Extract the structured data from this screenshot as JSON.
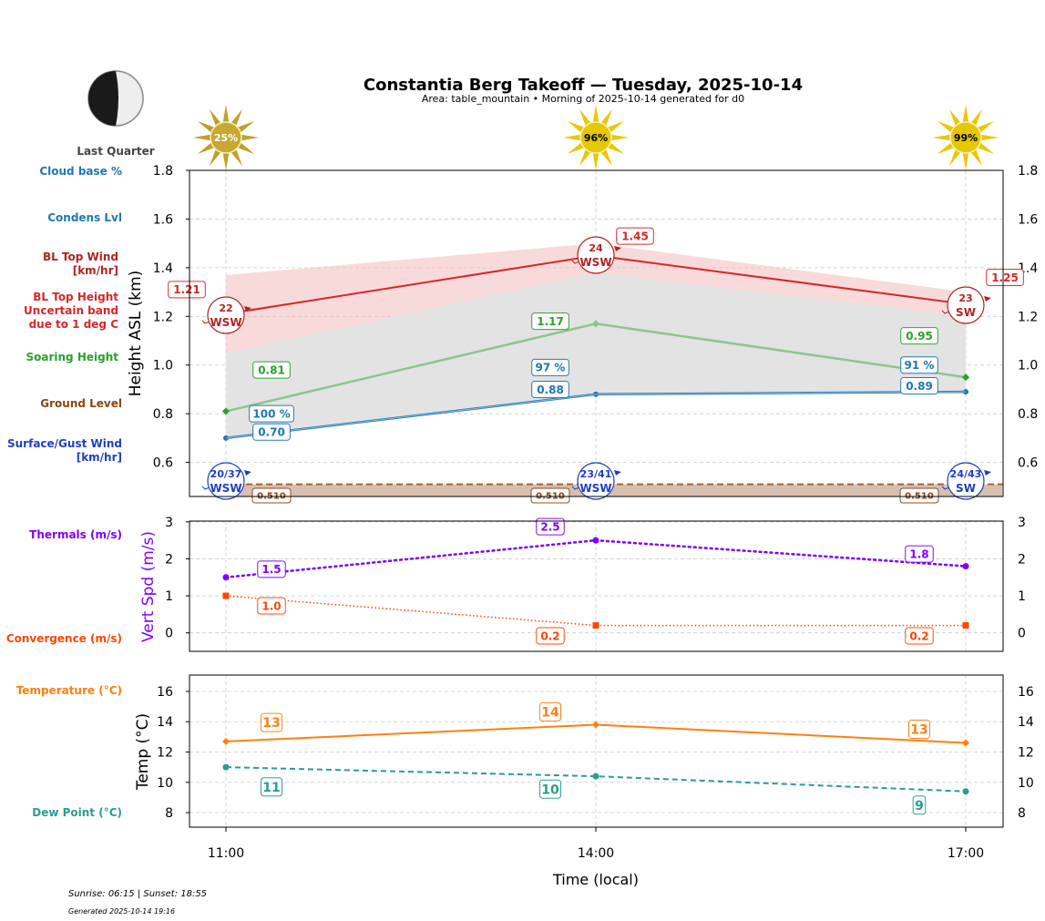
{
  "header": {
    "title": "Constantia Berg Takeoff — Tuesday, 2025-10-14",
    "subtitle": "Area: table_mountain • Morning of 2025-10-14 generated for d0",
    "moon_phase": "Last Quarter"
  },
  "footer": {
    "sun_times": "Sunrise: 06:15 | Sunset: 18:55",
    "generated": "Generated 2025-10-14 19:16"
  },
  "colors": {
    "cloud": "#1f77b4",
    "bl_wind": "#b22222",
    "bl_top": "#d62728",
    "soaring": "#2ca02c",
    "ground": "#8b4513",
    "surface_wind": "#1f3fbf",
    "thermals": "#7f00ff",
    "convergence": "#ff4500",
    "temperature": "#ff7f0e",
    "dewpoint": "#2a9d8f"
  },
  "chart_data": [
    {
      "type": "line",
      "title": "Heights",
      "ylabel": "Height ASL (km)",
      "ylim": [
        0.46,
        1.8
      ],
      "yticks": [
        "0.6",
        "0.8",
        "1.0",
        "1.2",
        "1.4",
        "1.6",
        "1.8"
      ],
      "ytick_values": [
        0.6,
        0.8,
        1.0,
        1.2,
        1.4,
        1.6,
        1.8
      ],
      "grid": true,
      "x": [
        "11:00",
        "14:00",
        "17:00"
      ],
      "sun_percent": [
        "25%",
        "96%",
        "99%"
      ],
      "series": [
        {
          "name": "BL Top Height",
          "values": [
            1.21,
            1.45,
            1.25
          ],
          "labels": [
            "1.21",
            "1.45",
            "1.25"
          ],
          "band_low": [
            1.05,
            1.38,
            1.2
          ],
          "band_high": [
            1.37,
            1.5,
            1.3
          ]
        },
        {
          "name": "Soaring Height",
          "values": [
            0.81,
            1.17,
            0.95
          ],
          "labels": [
            "0.81",
            "1.17",
            "0.95"
          ]
        },
        {
          "name": "Condens Lvl",
          "values": [
            0.7,
            0.88,
            0.89
          ],
          "labels": [
            "0.70",
            "0.88",
            "0.89"
          ]
        },
        {
          "name": "Cloud base %",
          "values": [
            100,
            97,
            91
          ],
          "labels": [
            "100 %",
            "97 %",
            "91 %"
          ]
        },
        {
          "name": "Ground Level",
          "values": [
            0.51,
            0.51,
            0.51
          ],
          "labels": [
            "0.510",
            "0.510",
            "0.510"
          ]
        }
      ],
      "bl_top_wind": [
        {
          "speed": "22",
          "dir": "WSW"
        },
        {
          "speed": "24",
          "dir": "WSW"
        },
        {
          "speed": "23",
          "dir": "SW"
        }
      ],
      "surface_wind": [
        {
          "speed": "20/37",
          "dir": "WSW"
        },
        {
          "speed": "23/41",
          "dir": "WSW"
        },
        {
          "speed": "24/43",
          "dir": "SW"
        }
      ],
      "legend_labels": {
        "cloud_base": "Cloud base %",
        "condens": "Condens Lvl",
        "bl_wind_1": "BL Top Wind",
        "bl_wind_2": "[km/hr]",
        "bl_top_1": "BL Top Height",
        "bl_top_2": "Uncertain band",
        "bl_top_3": "due to 1 deg C",
        "soaring": "Soaring Height",
        "ground": "Ground Level",
        "surface_1": "Surface/Gust Wind",
        "surface_2": "[km/hr]"
      }
    },
    {
      "type": "line",
      "title": "Vertical Speed",
      "ylabel": "Vert Spd (m/s)",
      "ylim": [
        -0.5,
        3.02
      ],
      "yticks": [
        "0",
        "1",
        "2",
        "3"
      ],
      "ytick_values": [
        0,
        1,
        2,
        3
      ],
      "grid": true,
      "x": [
        "11:00",
        "14:00",
        "17:00"
      ],
      "series": [
        {
          "name": "Thermals (m/s)",
          "values": [
            1.5,
            2.5,
            1.8
          ],
          "labels": [
            "1.5",
            "2.5",
            "1.8"
          ]
        },
        {
          "name": "Convergence (m/s)",
          "values": [
            1.0,
            0.2,
            0.2
          ],
          "labels": [
            "1.0",
            "0.2",
            "0.2"
          ]
        }
      ]
    },
    {
      "type": "line",
      "title": "Temperature",
      "ylabel": "Temp (°C)",
      "xlabel": "Time (local)",
      "ylim": [
        7.04,
        17.08
      ],
      "yticks": [
        "8",
        "10",
        "12",
        "14",
        "16"
      ],
      "ytick_values": [
        8,
        10,
        12,
        14,
        16
      ],
      "grid": true,
      "x": [
        "11:00",
        "14:00",
        "17:00"
      ],
      "series": [
        {
          "name": "Temperature (°C)",
          "values": [
            12.7,
            13.8,
            12.6
          ],
          "labels": [
            "13",
            "14",
            "13"
          ]
        },
        {
          "name": "Dew Point (°C)",
          "values": [
            11.0,
            10.4,
            9.4
          ],
          "labels": [
            "11",
            "10",
            "9"
          ]
        }
      ]
    }
  ]
}
